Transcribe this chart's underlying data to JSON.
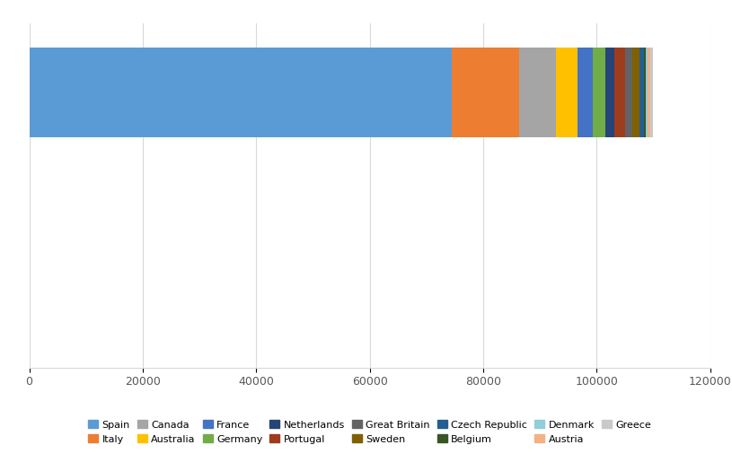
{
  "series": [
    {
      "label": "Spain",
      "value": 74500,
      "color": "#5B9BD5"
    },
    {
      "label": "Italy",
      "value": 11800,
      "color": "#ED7D31"
    },
    {
      "label": "Canada",
      "value": 6500,
      "color": "#A5A5A5"
    },
    {
      "label": "Australia",
      "value": 3800,
      "color": "#FFC000"
    },
    {
      "label": "France",
      "value": 2800,
      "color": "#4472C4"
    },
    {
      "label": "Germany",
      "value": 2200,
      "color": "#70AD47"
    },
    {
      "label": "Netherlands",
      "value": 1500,
      "color": "#264478"
    },
    {
      "label": "Portugal",
      "value": 2000,
      "color": "#9E3D1E"
    },
    {
      "label": "Great Britain",
      "value": 1200,
      "color": "#636363"
    },
    {
      "label": "Sweden",
      "value": 1200,
      "color": "#806000"
    },
    {
      "label": "Czech Republic",
      "value": 800,
      "color": "#255E91"
    },
    {
      "label": "Belgium",
      "value": 400,
      "color": "#375623"
    },
    {
      "label": "Denmark",
      "value": 300,
      "color": "#92CDDC"
    },
    {
      "label": "Austria",
      "value": 500,
      "color": "#F4B183"
    },
    {
      "label": "Greece",
      "value": 400,
      "color": "#C9C9C9"
    }
  ],
  "legend_row1": [
    "Spain",
    "Italy",
    "Canada",
    "Australia",
    "France",
    "Germany",
    "Netherlands",
    "Portugal"
  ],
  "legend_row2": [
    "Great Britain",
    "Sweden",
    "Czech Republic",
    "Belgium",
    "Denmark",
    "Austria",
    "Greece"
  ],
  "xlim": [
    0,
    120000
  ],
  "xtick_values": [
    0,
    20000,
    40000,
    60000,
    80000,
    100000,
    120000
  ],
  "background_color": "#FFFFFF",
  "grid_color": "#D9D9D9",
  "figsize": [
    8.15,
    5.25
  ],
  "dpi": 100
}
